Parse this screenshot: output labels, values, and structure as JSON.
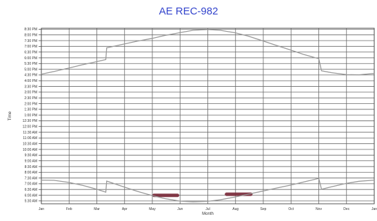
{
  "chart_data": {
    "type": "line",
    "title": "AE REC-982",
    "xlabel": "Month",
    "ylabel": "Time",
    "x_tick_labels": [
      "Jan",
      "Feb",
      "Mar",
      "Apr",
      "May",
      "Jun",
      "Jul",
      "Aug",
      "Sep",
      "Oct",
      "Nov",
      "Dec",
      "Jan"
    ],
    "y_tick_labels": [
      "5:30 AM",
      "6:00 AM",
      "6:30 AM",
      "7:00 AM",
      "7:30 AM",
      "8:00 AM",
      "8:30 AM",
      "9:00 AM",
      "9:30 AM",
      "10:00 AM",
      "10:30 AM",
      "11:00 AM",
      "11:30 AM",
      "12:00 PM",
      "12:30 PM",
      "1:00 PM",
      "1:30 PM",
      "2:00 PM",
      "2:30 PM",
      "3:00 PM",
      "3:30 PM",
      "4:00 PM",
      "4:30 PM",
      "5:00 PM",
      "5:30 PM",
      "6:00 PM",
      "6:30 PM",
      "7:00 PM",
      "7:30 PM",
      "8:00 PM",
      "8:30 PM"
    ],
    "ylim": [
      "5:15 AM",
      "8:35 PM"
    ],
    "grid": true,
    "series": [
      {
        "role": "sunset",
        "points": [
          [
            "Jan 1",
            "4:34 PM"
          ],
          [
            "Jan 15",
            "4:48 PM"
          ],
          [
            "Feb 1",
            "5:07 PM"
          ],
          [
            "Feb 15",
            "5:24 PM"
          ],
          [
            "Mar 1",
            "5:40 PM"
          ],
          [
            "Mar 11",
            "5:51 PM"
          ],
          [
            "Mar 12",
            "6:52 PM"
          ],
          [
            "Apr 1",
            "7:13 PM"
          ],
          [
            "Apr 15",
            "7:27 PM"
          ],
          [
            "May 1",
            "7:42 PM"
          ],
          [
            "May 15",
            "7:57 PM"
          ],
          [
            "Jun 1",
            "8:12 PM"
          ],
          [
            "Jun 15",
            "8:24 PM"
          ],
          [
            "Jul 1",
            "8:28 PM"
          ],
          [
            "Jul 15",
            "8:24 PM"
          ],
          [
            "Aug 1",
            "8:11 PM"
          ],
          [
            "Aug 15",
            "7:54 PM"
          ],
          [
            "Sep 1",
            "7:28 PM"
          ],
          [
            "Sep 15",
            "7:05 PM"
          ],
          [
            "Oct 1",
            "6:40 PM"
          ],
          [
            "Oct 15",
            "6:18 PM"
          ],
          [
            "Nov 1",
            "5:55 PM"
          ],
          [
            "Nov 4",
            "4:52 PM"
          ],
          [
            "Nov 15",
            "4:42 PM"
          ],
          [
            "Dec 1",
            "4:32 PM"
          ],
          [
            "Dec 15",
            "4:31 PM"
          ],
          [
            "Jan 1",
            "4:38 PM"
          ]
        ]
      },
      {
        "role": "sunrise",
        "points": [
          [
            "Jan 1",
            "7:19 AM"
          ],
          [
            "Jan 15",
            "7:18 AM"
          ],
          [
            "Feb 1",
            "7:07 AM"
          ],
          [
            "Feb 15",
            "6:51 AM"
          ],
          [
            "Mar 1",
            "6:31 AM"
          ],
          [
            "Mar 11",
            "6:16 AM"
          ],
          [
            "Mar 12",
            "7:14 AM"
          ],
          [
            "Apr 1",
            "6:42 AM"
          ],
          [
            "Apr 15",
            "6:20 AM"
          ],
          [
            "May 1",
            "5:58 AM"
          ],
          [
            "May 15",
            "5:42 AM"
          ],
          [
            "Jun 1",
            "5:29 AM"
          ],
          [
            "Jun 15",
            "5:25 AM"
          ],
          [
            "Jul 1",
            "5:28 AM"
          ],
          [
            "Jul 15",
            "5:36 AM"
          ],
          [
            "Aug 1",
            "5:51 AM"
          ],
          [
            "Aug 15",
            "6:05 AM"
          ],
          [
            "Sep 1",
            "6:22 AM"
          ],
          [
            "Sep 15",
            "6:37 AM"
          ],
          [
            "Oct 1",
            "6:53 AM"
          ],
          [
            "Oct 15",
            "7:09 AM"
          ],
          [
            "Nov 1",
            "7:28 AM"
          ],
          [
            "Nov 4",
            "6:31 AM"
          ],
          [
            "Nov 15",
            "6:44 AM"
          ],
          [
            "Dec 1",
            "7:02 AM"
          ],
          [
            "Dec 15",
            "7:13 AM"
          ],
          [
            "Jan 1",
            "7:19 AM"
          ]
        ]
      }
    ],
    "highlights": [
      {
        "x_range": [
          "May 1",
          "May 31"
        ],
        "y_range": [
          "5:50 AM",
          "6:08 AM"
        ],
        "color": "#7a2a3a"
      },
      {
        "x_range": [
          "Jul 20",
          "Aug 20"
        ],
        "y_range": [
          "5:56 AM",
          "6:14 AM"
        ],
        "color": "#7a2a3a"
      }
    ],
    "colors": {
      "title": "#3344cc",
      "line": "#999999",
      "grid": "#666666",
      "highlight": "#7a2a3a"
    }
  }
}
